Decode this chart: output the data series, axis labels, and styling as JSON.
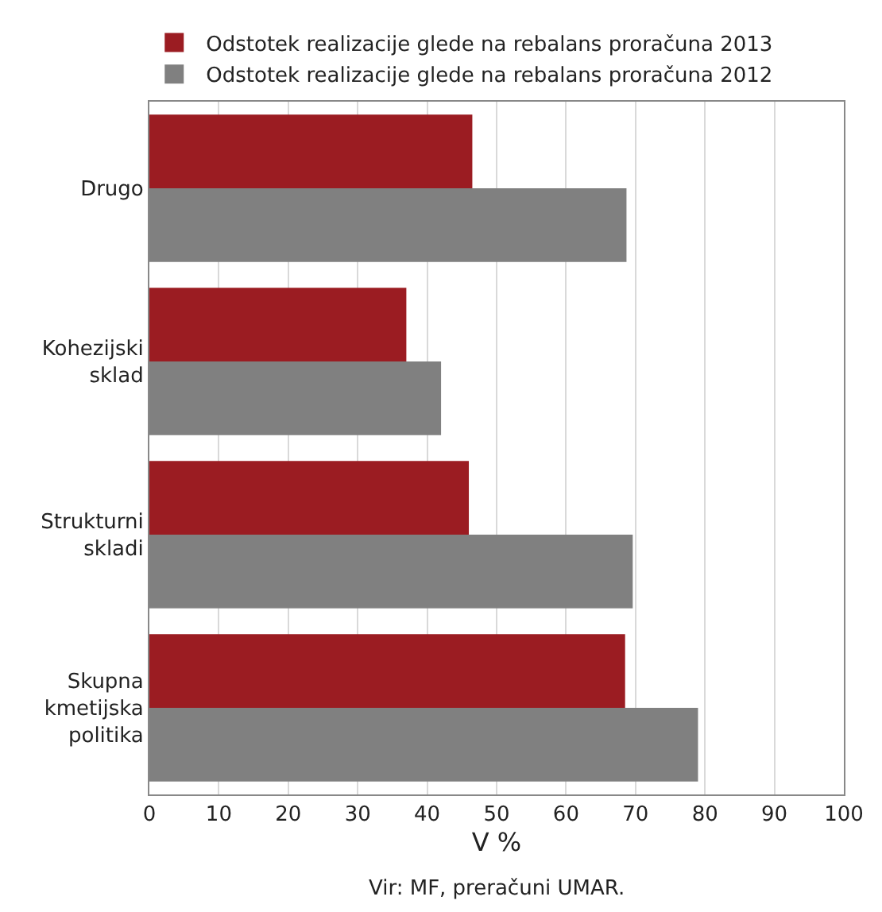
{
  "chart_data": {
    "type": "bar",
    "orientation": "horizontal",
    "xlabel": "V %",
    "categories": [
      "Drugo",
      "Kohezijski sklad",
      "Strukturni skladi",
      "Skupna kmetijska politika"
    ],
    "series": [
      {
        "name": "Odstotek realizacije glede na rebalans proračuna 2013",
        "color": "#9b1c22",
        "values": [
          46.5,
          37,
          46,
          68.5
        ]
      },
      {
        "name": "Odstotek realizacije glede na rebalans proračuna 2012",
        "color": "#808080",
        "values": [
          68.7,
          42,
          69.6,
          79
        ]
      }
    ],
    "xlim": [
      0,
      100
    ],
    "xticks": [
      0,
      10,
      20,
      30,
      40,
      50,
      60,
      70,
      80,
      90,
      100
    ],
    "grid": "x",
    "legend": "top left",
    "annotations": [
      "Vir: MF, preračuni UMAR."
    ]
  }
}
